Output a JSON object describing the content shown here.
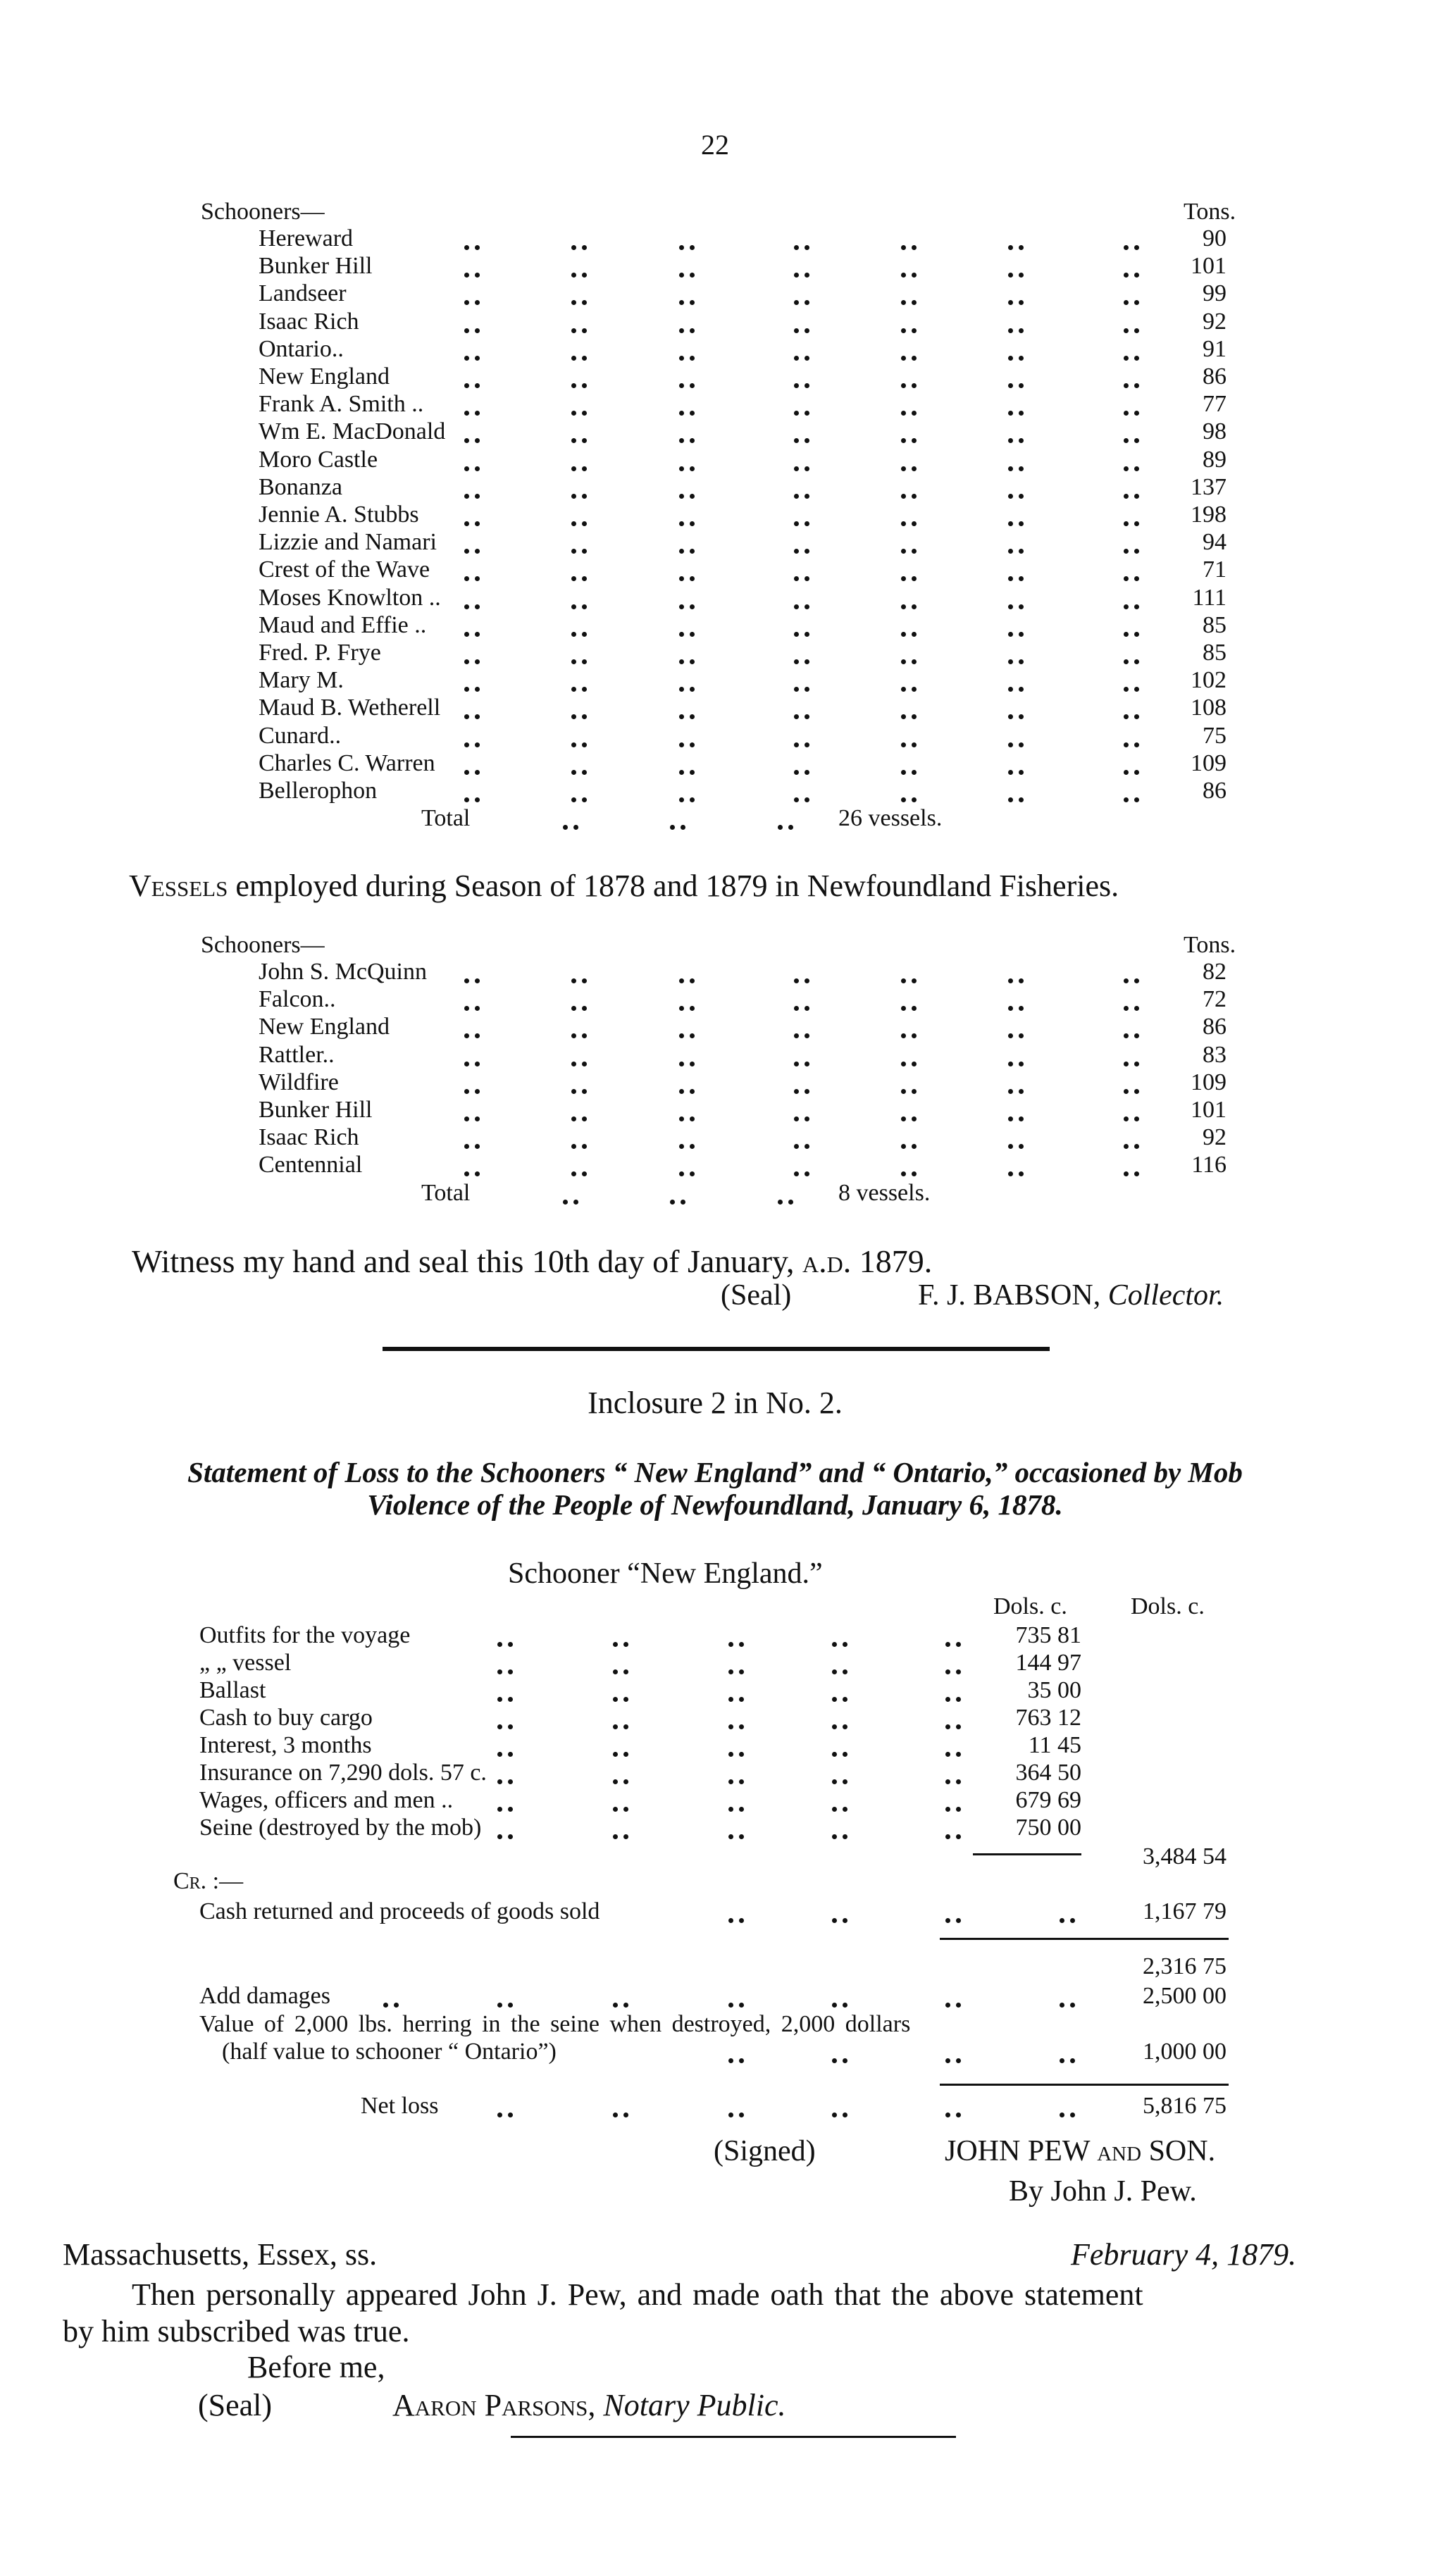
{
  "page_number": "22",
  "table1": {
    "section_label": "Schooners—",
    "unit_header": "Tons.",
    "rows": [
      {
        "name": "Hereward",
        "tons": "90"
      },
      {
        "name": "Bunker Hill",
        "tons": "101"
      },
      {
        "name": "Landseer",
        "tons": "99"
      },
      {
        "name": "Isaac Rich",
        "tons": "92"
      },
      {
        "name": "Ontario..",
        "tons": "91"
      },
      {
        "name": "New England",
        "tons": "86"
      },
      {
        "name": "Frank A. Smith ..",
        "tons": "77"
      },
      {
        "name": "Wm E. MacDonald",
        "tons": "98"
      },
      {
        "name": "Moro Castle",
        "tons": "89"
      },
      {
        "name": "Bonanza",
        "tons": "137"
      },
      {
        "name": "Jennie A. Stubbs",
        "tons": "198"
      },
      {
        "name": "Lizzie and Namari",
        "tons": "94"
      },
      {
        "name": "Crest of the Wave",
        "tons": "71"
      },
      {
        "name": "Moses Knowlton ..",
        "tons": "111"
      },
      {
        "name": "Maud and Effie ..",
        "tons": "85"
      },
      {
        "name": "Fred. P. Frye",
        "tons": "85"
      },
      {
        "name": "Mary M.",
        "tons": "102"
      },
      {
        "name": "Maud B. Wetherell",
        "tons": "108"
      },
      {
        "name": "Cunard..",
        "tons": "75"
      },
      {
        "name": "Charles C. Warren",
        "tons": "109"
      },
      {
        "name": "Bellerophon",
        "tons": "86"
      }
    ],
    "total_label": "Total",
    "total_value": "26 vessels."
  },
  "heading2": {
    "caps": "Vessels",
    "rest": " employed during Season of 1878 and 1879 in Newfoundland Fisheries."
  },
  "table2": {
    "section_label": "Schooners—",
    "unit_header": "Tons.",
    "rows": [
      {
        "name": "John S. McQuinn",
        "tons": "82"
      },
      {
        "name": "Falcon..",
        "tons": "72"
      },
      {
        "name": "New England",
        "tons": "86"
      },
      {
        "name": "Rattler..",
        "tons": "83"
      },
      {
        "name": "Wildfire",
        "tons": "109"
      },
      {
        "name": "Bunker Hill",
        "tons": "101"
      },
      {
        "name": "Isaac Rich",
        "tons": "92"
      },
      {
        "name": "Centennial",
        "tons": "116"
      }
    ],
    "total_label": "Total",
    "total_value": "8 vessels."
  },
  "witness": {
    "text": "Witness my hand and seal this 10th day of January, ",
    "era": "a.d.",
    "year": " 1879.",
    "seal": "(Seal)",
    "signer": "F. J. BABSON,",
    "signer_title": "Collector."
  },
  "inclosure": {
    "title": "Inclosure 2 in No. 2.",
    "statement_line1": "Statement of Loss to the Schooners “ New England” and “ Ontario,” occasioned by Mob",
    "statement_line2": "Violence of the People of Newfoundland, January 6, 1878.",
    "schooner_heading": "Schooner “New England.”"
  },
  "loss_table": {
    "col_headers": [
      "Dols. c.",
      "Dols. c."
    ],
    "rows": [
      {
        "label": "Outfits for the voyage",
        "amount": "735 81"
      },
      {
        "label": "„       „      vessel",
        "amount": "144 97"
      },
      {
        "label": "Ballast",
        "amount": "35 00"
      },
      {
        "label": "Cash to buy cargo",
        "amount": "763 12"
      },
      {
        "label": "Interest, 3 months",
        "amount": "11 45"
      },
      {
        "label": "Insurance on 7,290 dols. 57 c.",
        "amount": "364 50"
      },
      {
        "label": "Wages, officers and men ..",
        "amount": "679 69"
      },
      {
        "label": "Seine (destroyed by the mob)",
        "amount": "750 00"
      }
    ],
    "subtotal": "3,484 54",
    "credit_label": "Cr. :—",
    "credit_row": {
      "label": "Cash returned and proceeds of goods sold",
      "amount": "1,167 79"
    },
    "balance": "2,316 75",
    "damages_row": {
      "label": "Add damages",
      "amount": "2,500 00"
    },
    "herring_line1": "Value of 2,000 lbs. herring in the seine when destroyed, 2,000 dollars",
    "herring_line2": "(half value to schooner “ Ontario”)",
    "herring_amount": "1,000 00",
    "net_loss_label": "Net loss",
    "net_loss": "5,816 75"
  },
  "signature": {
    "signed": "(Signed)",
    "name": "JOHN PEW ",
    "and": "and",
    "son": " SON.",
    "by": "By John J. Pew."
  },
  "affidavit": {
    "venue": "Massachusetts, Essex, ss.",
    "date": "February 4, 1879.",
    "line1": "Then personally appeared John J. Pew, and made oath that the above statement",
    "line2": "by him subscribed was true.",
    "before": "Before me,",
    "seal": "(Seal)",
    "notary_name": "Aaron Parsons,",
    "notary_title": "Notary Public."
  }
}
